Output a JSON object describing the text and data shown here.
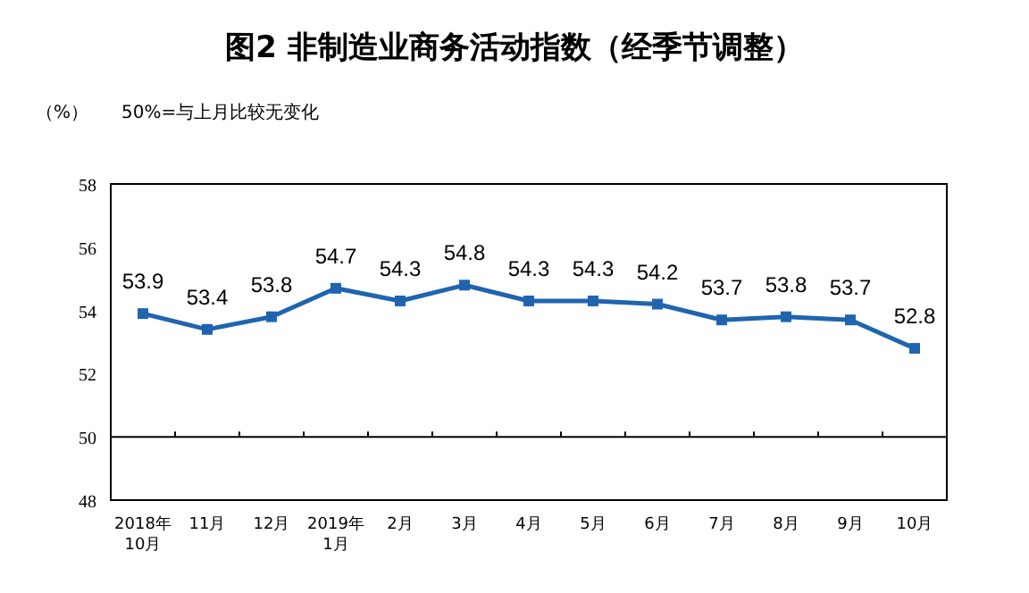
{
  "chart_data": {
    "type": "line",
    "title": "图2 非制造业商务活动指数（经季节调整）",
    "ylabel": "（%）",
    "annotations": [
      "50%=与上月比较无变化"
    ],
    "categories": [
      "2018年\n10月",
      "11月",
      "12月",
      "2019年\n1月",
      "2月",
      "3月",
      "4月",
      "5月",
      "6月",
      "7月",
      "8月",
      "9月",
      "10月"
    ],
    "series": [
      {
        "color": "#1f64b0",
        "values": [
          53.9,
          53.4,
          53.8,
          54.7,
          54.3,
          54.8,
          54.3,
          54.3,
          54.2,
          53.7,
          53.8,
          53.7,
          52.8
        ]
      }
    ],
    "ylim": [
      48,
      58
    ],
    "yticks": [
      48,
      50,
      52,
      54,
      56,
      58
    ],
    "ref_lines": [
      {
        "axis": "y",
        "value": 50,
        "color": "#000000"
      }
    ],
    "data_labels": true,
    "marker": "square",
    "line_style": "solid",
    "grid": false
  }
}
